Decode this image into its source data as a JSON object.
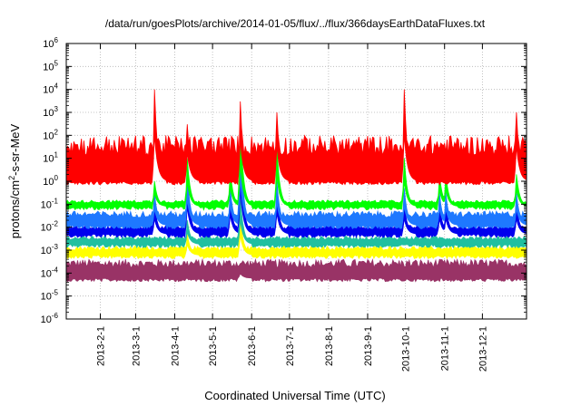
{
  "chart_data": {
    "type": "area",
    "title": "/data/run/goesPlots/archive/2014-01-05/flux/../flux/366daysEarthDataFluxes.txt",
    "xlabel": "Coordinated Universal Time (UTC)",
    "ylabel": "protons/cm2-s-sr-MeV",
    "ylabel_base": "protons/cm",
    "ylabel_sup": "2",
    "ylabel_rest": "-s-sr-MeV",
    "yscale": "log",
    "ylim": [
      1e-06,
      1000000.0
    ],
    "xlim": [
      "2013-01-05",
      "2014-01-05"
    ],
    "grid": true,
    "y_ticks": [
      {
        "base": "10",
        "exp": "-6"
      },
      {
        "base": "10",
        "exp": "-5"
      },
      {
        "base": "10",
        "exp": "-4"
      },
      {
        "base": "10",
        "exp": "-3"
      },
      {
        "base": "10",
        "exp": "-2"
      },
      {
        "base": "10",
        "exp": "-1"
      },
      {
        "base": "10",
        "exp": "0"
      },
      {
        "base": "10",
        "exp": "1"
      },
      {
        "base": "10",
        "exp": "2"
      },
      {
        "base": "10",
        "exp": "3"
      },
      {
        "base": "10",
        "exp": "4"
      },
      {
        "base": "10",
        "exp": "5"
      },
      {
        "base": "10",
        "exp": "6"
      }
    ],
    "x_ticks": [
      "2013-2-1",
      "2013-3-1",
      "2013-4-1",
      "2013-5-1",
      "2013-6-1",
      "2013-7-1",
      "2013-8-1",
      "2013-9-1",
      "2013-10-1",
      "2013-11-1",
      "2013-12-1"
    ],
    "x_tick_dates": [
      "2013-02-01",
      "2013-03-01",
      "2013-04-01",
      "2013-05-01",
      "2013-06-01",
      "2013-07-01",
      "2013-08-01",
      "2013-09-01",
      "2013-10-01",
      "2013-11-01",
      "2013-12-01"
    ],
    "series": [
      {
        "color": "#993366",
        "baseline": 6e-05,
        "upper": 0.0004,
        "events": [
          {
            "date": "2013-05-23",
            "peak": 0.00015
          }
        ]
      },
      {
        "color": "#ffff00",
        "baseline": 0.0006,
        "upper": 0.0015,
        "events": [
          {
            "date": "2013-04-11",
            "peak": 0.005
          },
          {
            "date": "2013-05-23",
            "peak": 0.03
          }
        ]
      },
      {
        "color": "#20c0a0",
        "baseline": 0.0018,
        "upper": 0.004,
        "events": [
          {
            "date": "2013-04-11",
            "peak": 0.02
          },
          {
            "date": "2013-05-23",
            "peak": 0.2
          }
        ]
      },
      {
        "color": "#0000ee",
        "baseline": 0.005,
        "upper": 0.012,
        "events": [
          {
            "date": "2013-03-16",
            "peak": 0.1
          },
          {
            "date": "2013-04-11",
            "peak": 1.0
          },
          {
            "date": "2013-05-15",
            "peak": 0.2
          },
          {
            "date": "2013-05-23",
            "peak": 30.0
          },
          {
            "date": "2013-06-21",
            "peak": 0.3
          },
          {
            "date": "2013-09-30",
            "peak": 0.1
          },
          {
            "date": "2013-10-28",
            "peak": 0.1
          },
          {
            "date": "2013-11-02",
            "peak": 0.1
          },
          {
            "date": "2013-12-28",
            "peak": 0.1
          }
        ]
      },
      {
        "color": "#1e78ff",
        "baseline": 0.012,
        "upper": 0.05,
        "events": [
          {
            "date": "2013-03-16",
            "peak": 0.3
          },
          {
            "date": "2013-04-11",
            "peak": 2.0
          },
          {
            "date": "2013-05-15",
            "peak": 0.5
          },
          {
            "date": "2013-05-23",
            "peak": 100.0
          },
          {
            "date": "2013-06-21",
            "peak": 1.0
          },
          {
            "date": "2013-09-30",
            "peak": 0.5
          },
          {
            "date": "2013-10-28",
            "peak": 0.3
          },
          {
            "date": "2013-11-02",
            "peak": 0.3
          },
          {
            "date": "2013-12-28",
            "peak": 0.3
          }
        ]
      },
      {
        "color": "#00ff00",
        "baseline": 0.08,
        "upper": 0.15,
        "events": [
          {
            "date": "2013-03-16",
            "peak": 1.0
          },
          {
            "date": "2013-04-11",
            "peak": 10.0
          },
          {
            "date": "2013-05-15",
            "peak": 3.0
          },
          {
            "date": "2013-05-23",
            "peak": 300.0
          },
          {
            "date": "2013-06-21",
            "peak": 30.0
          },
          {
            "date": "2013-09-30",
            "peak": 10.0
          },
          {
            "date": "2013-10-28",
            "peak": 2.0
          },
          {
            "date": "2013-11-02",
            "peak": 2.0
          },
          {
            "date": "2013-12-28",
            "peak": 2.0
          }
        ]
      },
      {
        "color": "#ff0000",
        "baseline": 1.0,
        "upper": 100.0,
        "events": [
          {
            "date": "2013-03-16",
            "peak": 10000.0
          },
          {
            "date": "2013-04-11",
            "peak": 300.0
          },
          {
            "date": "2013-05-23",
            "peak": 3000.0
          },
          {
            "date": "2013-06-21",
            "peak": 1000.0
          },
          {
            "date": "2013-09-30",
            "peak": 10000.0
          },
          {
            "date": "2013-12-28",
            "peak": 1000.0
          }
        ]
      }
    ]
  }
}
